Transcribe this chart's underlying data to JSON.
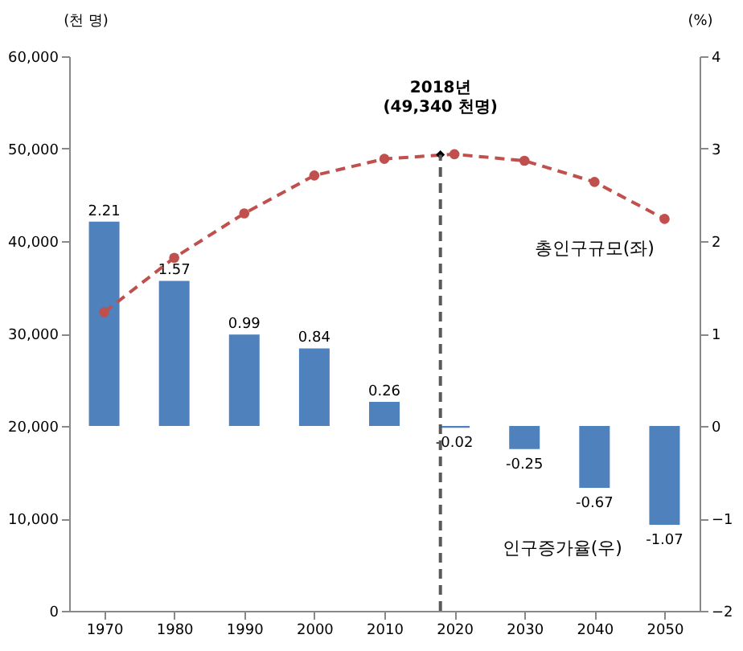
{
  "chart_data": {
    "type": "bar",
    "ylabel": "(천 명)",
    "y2label": "(%)",
    "xlim": [
      1965,
      2055
    ],
    "xticks": [
      1970,
      1980,
      1990,
      2000,
      2010,
      2020,
      2030,
      2040,
      2050
    ],
    "ylim": [
      0,
      60000
    ],
    "yticks": [
      0,
      {
        "value": 10000,
        "label": "10,000"
      },
      {
        "value": 20000,
        "label": "20,000"
      },
      {
        "value": 30000,
        "label": "30,000"
      },
      {
        "value": 40000,
        "label": "40,000"
      },
      {
        "value": 50000,
        "label": "50,000"
      },
      {
        "value": 60000,
        "label": "60,000"
      }
    ],
    "y2lim": [
      -2,
      4
    ],
    "y2ticks": [
      -2,
      -1,
      0,
      1,
      2,
      3,
      4
    ],
    "series": [
      {
        "name": "인구증가율(우)",
        "axis": "y2",
        "color": "#4f81bd",
        "x": [
          1970,
          1980,
          1990,
          2000,
          2010,
          2020,
          2030,
          2040,
          2050
        ],
        "values": [
          2.21,
          1.57,
          0.99,
          0.84,
          0.26,
          -0.02,
          -0.25,
          -0.67,
          -1.07
        ],
        "value_labels": [
          "2.21",
          "1.57",
          "0.99",
          "0.84",
          "0.26",
          "-0.02",
          "-0.25",
          "-0.67",
          "-1.07"
        ]
      },
      {
        "name": "총인구규모(좌)",
        "type": "line",
        "color": "#c0504d",
        "line_style": "dashed",
        "marker": "circle",
        "x": [
          1970,
          1980,
          1990,
          2000,
          2010,
          2020,
          2030,
          2040,
          2050
        ],
        "values": [
          32300,
          38200,
          43000,
          47100,
          48900,
          49400,
          48700,
          46400,
          42400
        ]
      },
      {
        "type": "scatter",
        "color": "#000000",
        "marker": "diamond",
        "x": [
          2018
        ],
        "values": [
          49340
        ]
      }
    ],
    "ref_lines": [
      {
        "axis": "x",
        "value": 2018,
        "color": "#595959",
        "line_style": "dashed"
      }
    ],
    "annotations": [
      {
        "text": "2018년\n(49,340 천명)",
        "x": 2018,
        "y": 49340
      }
    ],
    "grid": false
  }
}
